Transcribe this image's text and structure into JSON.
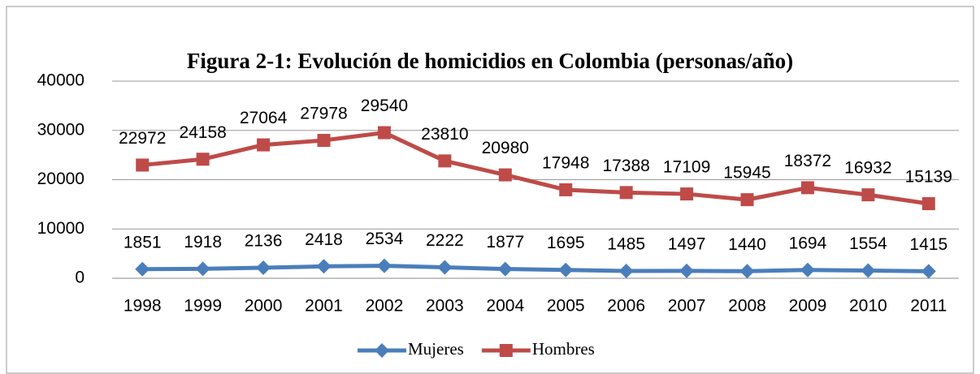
{
  "chart_data": {
    "type": "line",
    "title": "Figura 2-1: Evolución de homicidios en Colombia (personas/año)",
    "categories": [
      "1998",
      "1999",
      "2000",
      "2001",
      "2002",
      "2003",
      "2004",
      "2005",
      "2006",
      "2007",
      "2008",
      "2009",
      "2010",
      "2011"
    ],
    "series": [
      {
        "name": "Mujeres",
        "color": "#4a7ebb",
        "marker": "diamond",
        "values": [
          1851,
          1918,
          2136,
          2418,
          2534,
          2222,
          1877,
          1695,
          1485,
          1497,
          1440,
          1694,
          1554,
          1415
        ]
      },
      {
        "name": "Hombres",
        "color": "#be4b48",
        "marker": "square",
        "values": [
          22972,
          24158,
          27064,
          27978,
          29540,
          23810,
          20980,
          17948,
          17388,
          17109,
          15945,
          18372,
          16932,
          15139
        ]
      }
    ],
    "ylim": [
      0,
      40000
    ],
    "yticks": [
      0,
      10000,
      20000,
      30000,
      40000
    ],
    "grid": true,
    "legend": "bottom"
  }
}
